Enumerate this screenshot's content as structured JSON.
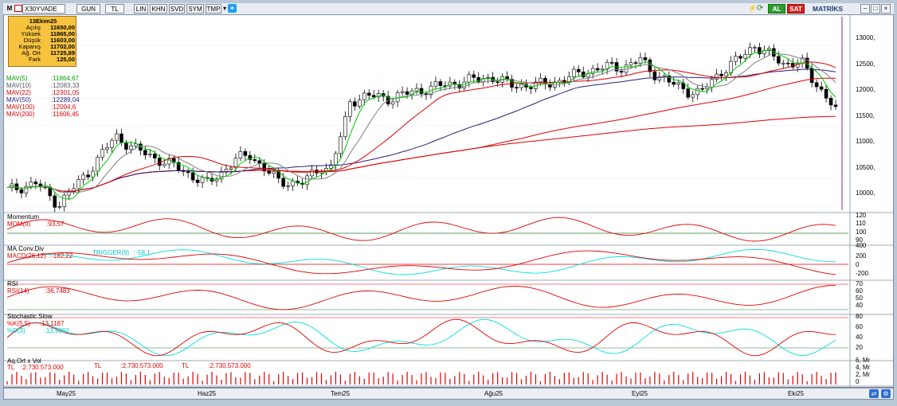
{
  "toolbar": {
    "symbol": "X30YVADE",
    "period": "GUN",
    "currency": "TL",
    "scale_buttons": [
      "LIN",
      "KHN",
      "SVD",
      "SYM",
      "TMP"
    ],
    "buy_label": "AL",
    "sell_label": "SAT",
    "brand": "MATRİKS"
  },
  "info_box": {
    "date": "13Ekim25",
    "rows": [
      {
        "label": "Açılış",
        "value": "11650,00"
      },
      {
        "label": "Yüksek",
        "value": "11865,00"
      },
      {
        "label": "Düşük",
        "value": "11603,00"
      },
      {
        "label": "Kapanış",
        "value": "11702,00"
      },
      {
        "label": "Ağ. Ort",
        "value": "11725,89"
      },
      {
        "label": "Fark",
        "value": "125,00"
      }
    ]
  },
  "moving_averages": [
    {
      "label": "MAV(5)",
      "value": ":11864,67",
      "color": "#00cc00"
    },
    {
      "label": "MAV(10)",
      "value": ":12083,33",
      "color": "#808080"
    },
    {
      "label": "MAV(22)",
      "value": ":12301,05",
      "color": "#e00000"
    },
    {
      "label": "MAV(50)",
      "value": ":12289,04",
      "color": "#2a1a7a"
    },
    {
      "label": "MAV(100)",
      "value": ":12004,6",
      "color": "#e00000"
    },
    {
      "label": "MAV(200)",
      "value": ":11606,45",
      "color": "#e00000"
    }
  ],
  "price_axis": [
    "13000,",
    "12500,",
    "12000,",
    "11500,",
    "11000,",
    "10500,",
    "10000,"
  ],
  "indicators": {
    "momentum": {
      "title": "Momentum",
      "line": "MOM(9)",
      "value": ":93,57",
      "axis": [
        "120",
        "110",
        "100",
        "90"
      ]
    },
    "macd": {
      "title": "MA.Conv.Div",
      "line": "MACD(26,12)",
      "value": ":-182,22",
      "trigger": "TRIGGER(9)",
      "trigger_value": ":-58,1",
      "axis": [
        "400",
        "200",
        "0",
        "-200"
      ]
    },
    "rsi": {
      "title": "RSI",
      "line": "RSI(14)",
      "value": ":36,7483",
      "axis": [
        "70",
        "60",
        "50",
        "40"
      ]
    },
    "stoch": {
      "title": "Stochastic.Slow",
      "k": "%K(5,5)",
      "k_value": ":13,1187",
      "d": "%D(3)",
      "d_value": ":13,9062",
      "axis": [
        "80",
        "60",
        "40",
        "20"
      ]
    },
    "volume": {
      "title": "Aq.Ort x Vol",
      "items": [
        {
          "label": "TL",
          "value": ":2.730.573.000"
        },
        {
          "label": "TL",
          "value": ":2.730.573.000"
        },
        {
          "label": "TL",
          "value": ":2.730.573.000"
        }
      ],
      "axis": [
        "6, Mr",
        "4, Mr",
        "2, Mr",
        "0"
      ]
    }
  },
  "x_axis": [
    "May25",
    "Haz25",
    "Tem25",
    "Ağu25",
    "Eyl25",
    "Eki25"
  ],
  "colors": {
    "up": "#ffffff",
    "down": "#000000",
    "ma5": "#00cc00",
    "ma10": "#808080",
    "ma22": "#e00000",
    "ma50": "#2a1a7a",
    "ma100": "#e00000",
    "ma200": "#e00000",
    "trigger": "#00dede",
    "signal_red": "#e00000"
  }
}
